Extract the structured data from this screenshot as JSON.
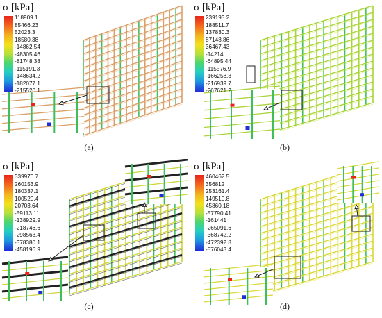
{
  "panels": [
    {
      "label": "(a)",
      "unit": "σ [kPa]",
      "ticks": [
        "118909.1",
        "85466.23",
        "52023.3",
        "18580.38",
        "-14862.54",
        "-48305.46",
        "-81748.38",
        "-115191.3",
        "-148634.2",
        "-182077.1",
        "-215520.1"
      ],
      "structure_color": "#d9a06a",
      "accent_color": "#e8b27c"
    },
    {
      "label": "(b)",
      "unit": "σ [kPa]",
      "ticks": [
        "239193.2",
        "188511.7",
        "137830.3",
        "87148.86",
        "36467.43",
        "-14214",
        "-64895.44",
        "-115576.9",
        "-166258.3",
        "-216939.7",
        "-267621.2"
      ],
      "structure_color": "#a9d43a",
      "accent_color": "#c6e24a"
    },
    {
      "label": "(c)",
      "unit": "σ [kPa]",
      "ticks": [
        "339970.7",
        "260153.9",
        "180337.1",
        "100520.4",
        "20703.64",
        "-59113.11",
        "-138929.9",
        "-218746.6",
        "-298563.4",
        "-378380.1",
        "-458196.9"
      ],
      "structure_color": "#cfd63c",
      "accent_color": "#222222"
    },
    {
      "label": "(d)",
      "unit": "σ [kPa]",
      "ticks": [
        "460462.5",
        "356812",
        "253161.4",
        "149510.8",
        "45860.18",
        "-57790.41",
        "-161441",
        "-265091.6",
        "-368742.2",
        "-472392.8",
        "-576043.4"
      ],
      "structure_color": "#d9d93c",
      "accent_color": "#e6e04a"
    }
  ]
}
